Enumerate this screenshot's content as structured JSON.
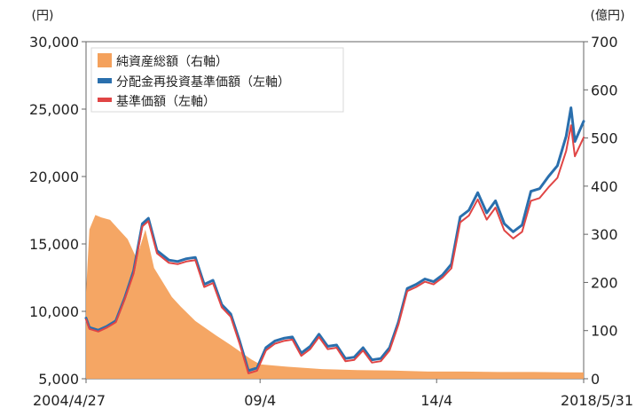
{
  "chart_data": {
    "type": "line",
    "left_axis": {
      "unit": "(円)",
      "ylim": [
        5000,
        30000
      ],
      "ticks": [
        5000,
        10000,
        15000,
        20000,
        25000,
        30000
      ],
      "tick_labels": [
        "5,000",
        "10,000",
        "15,000",
        "20,000",
        "25,000",
        "30,000"
      ]
    },
    "right_axis": {
      "unit": "(億円)",
      "ylim": [
        0,
        700
      ],
      "ticks": [
        0,
        100,
        200,
        300,
        400,
        500,
        600,
        700
      ],
      "tick_labels": [
        "0",
        "100",
        "200",
        "300",
        "400",
        "500",
        "600",
        "700"
      ]
    },
    "x_axis": {
      "range": [
        "2004-04-27",
        "2018-05-31"
      ],
      "ticks": [
        "2004-04-27",
        "2009-04-01",
        "2014-04-01",
        "2018-05-31"
      ],
      "tick_labels": [
        "2004/4/27",
        "09/4",
        "14/4",
        "2018/5/31"
      ]
    },
    "legend": {
      "placement": "top-left",
      "entries": [
        {
          "label": "純資産総額（右軸）",
          "type": "area",
          "color": "#f4a15c"
        },
        {
          "label": "分配金再投資基準価額（左軸）",
          "type": "line",
          "color": "#2a6fad"
        },
        {
          "label": "基準価額（左軸）",
          "type": "line",
          "color": "#e04545"
        }
      ]
    },
    "series": [
      {
        "name": "純資産総額（右軸）",
        "type": "area",
        "axis": "right",
        "color": "#f4a15c",
        "points": [
          [
            "2004-04-27",
            180
          ],
          [
            "2004-06-01",
            310
          ],
          [
            "2004-08-01",
            340
          ],
          [
            "2004-10-01",
            335
          ],
          [
            "2005-01-01",
            330
          ],
          [
            "2005-04-01",
            310
          ],
          [
            "2005-07-01",
            290
          ],
          [
            "2005-10-01",
            250
          ],
          [
            "2006-01-01",
            310
          ],
          [
            "2006-04-01",
            230
          ],
          [
            "2006-07-01",
            200
          ],
          [
            "2006-10-01",
            170
          ],
          [
            "2007-01-01",
            150
          ],
          [
            "2007-06-01",
            120
          ],
          [
            "2008-01-01",
            90
          ],
          [
            "2008-06-01",
            70
          ],
          [
            "2009-01-01",
            40
          ],
          [
            "2009-04-01",
            30
          ],
          [
            "2010-01-01",
            25
          ],
          [
            "2011-01-01",
            20
          ],
          [
            "2012-01-01",
            18
          ],
          [
            "2013-01-01",
            17
          ],
          [
            "2014-01-01",
            15
          ],
          [
            "2015-01-01",
            15
          ],
          [
            "2016-01-01",
            14
          ],
          [
            "2017-01-01",
            14
          ],
          [
            "2018-05-31",
            13
          ]
        ]
      },
      {
        "name": "分配金再投資基準価額（左軸）",
        "type": "line",
        "axis": "left",
        "color": "#2a6fad",
        "points": [
          [
            "2004-04-27",
            9500
          ],
          [
            "2004-06-01",
            8800
          ],
          [
            "2004-09-01",
            8600
          ],
          [
            "2004-12-01",
            8900
          ],
          [
            "2005-03-01",
            9300
          ],
          [
            "2005-06-01",
            11000
          ],
          [
            "2005-09-01",
            13000
          ],
          [
            "2005-12-01",
            16500
          ],
          [
            "2006-02-01",
            16900
          ],
          [
            "2006-05-01",
            14500
          ],
          [
            "2006-09-01",
            13800
          ],
          [
            "2006-12-01",
            13700
          ],
          [
            "2007-03-01",
            13900
          ],
          [
            "2007-06-01",
            14000
          ],
          [
            "2007-09-01",
            12000
          ],
          [
            "2007-12-01",
            12300
          ],
          [
            "2008-03-01",
            10500
          ],
          [
            "2008-06-01",
            9800
          ],
          [
            "2008-09-01",
            7800
          ],
          [
            "2008-12-01",
            5600
          ],
          [
            "2009-03-01",
            5800
          ],
          [
            "2009-06-01",
            7300
          ],
          [
            "2009-09-01",
            7800
          ],
          [
            "2009-12-01",
            8000
          ],
          [
            "2010-03-01",
            8100
          ],
          [
            "2010-06-01",
            6900
          ],
          [
            "2010-09-01",
            7400
          ],
          [
            "2010-12-01",
            8300
          ],
          [
            "2011-03-01",
            7400
          ],
          [
            "2011-06-01",
            7500
          ],
          [
            "2011-09-01",
            6500
          ],
          [
            "2011-12-01",
            6600
          ],
          [
            "2012-03-01",
            7300
          ],
          [
            "2012-06-01",
            6400
          ],
          [
            "2012-09-01",
            6500
          ],
          [
            "2012-12-01",
            7300
          ],
          [
            "2013-03-01",
            9200
          ],
          [
            "2013-06-01",
            11700
          ],
          [
            "2013-09-01",
            12000
          ],
          [
            "2013-12-01",
            12400
          ],
          [
            "2014-03-01",
            12200
          ],
          [
            "2014-06-01",
            12700
          ],
          [
            "2014-09-01",
            13500
          ],
          [
            "2014-12-01",
            17000
          ],
          [
            "2015-03-01",
            17500
          ],
          [
            "2015-06-01",
            18800
          ],
          [
            "2015-09-01",
            17300
          ],
          [
            "2015-12-01",
            18200
          ],
          [
            "2016-03-01",
            16500
          ],
          [
            "2016-06-01",
            15900
          ],
          [
            "2016-09-01",
            16400
          ],
          [
            "2016-12-01",
            18900
          ],
          [
            "2017-03-01",
            19100
          ],
          [
            "2017-06-01",
            20000
          ],
          [
            "2017-09-01",
            20800
          ],
          [
            "2017-12-01",
            23000
          ],
          [
            "2018-01-20",
            25100
          ],
          [
            "2018-03-01",
            22600
          ],
          [
            "2018-05-31",
            24100
          ]
        ]
      },
      {
        "name": "基準価額（左軸）",
        "type": "line",
        "axis": "left",
        "color": "#e04545",
        "points": [
          [
            "2004-04-27",
            9400
          ],
          [
            "2004-06-01",
            8700
          ],
          [
            "2004-09-01",
            8500
          ],
          [
            "2004-12-01",
            8800
          ],
          [
            "2005-03-01",
            9200
          ],
          [
            "2005-06-01",
            10900
          ],
          [
            "2005-09-01",
            12800
          ],
          [
            "2005-12-01",
            16300
          ],
          [
            "2006-02-01",
            16700
          ],
          [
            "2006-05-01",
            14300
          ],
          [
            "2006-09-01",
            13600
          ],
          [
            "2006-12-01",
            13500
          ],
          [
            "2007-03-01",
            13700
          ],
          [
            "2007-06-01",
            13800
          ],
          [
            "2007-09-01",
            11800
          ],
          [
            "2007-12-01",
            12100
          ],
          [
            "2008-03-01",
            10300
          ],
          [
            "2008-06-01",
            9600
          ],
          [
            "2008-09-01",
            7600
          ],
          [
            "2008-12-01",
            5400
          ],
          [
            "2009-03-01",
            5600
          ],
          [
            "2009-06-01",
            7100
          ],
          [
            "2009-09-01",
            7600
          ],
          [
            "2009-12-01",
            7800
          ],
          [
            "2010-03-01",
            7900
          ],
          [
            "2010-06-01",
            6700
          ],
          [
            "2010-09-01",
            7200
          ],
          [
            "2010-12-01",
            8100
          ],
          [
            "2011-03-01",
            7200
          ],
          [
            "2011-06-01",
            7300
          ],
          [
            "2011-09-01",
            6300
          ],
          [
            "2011-12-01",
            6400
          ],
          [
            "2012-03-01",
            7100
          ],
          [
            "2012-06-01",
            6200
          ],
          [
            "2012-09-01",
            6300
          ],
          [
            "2012-12-01",
            7100
          ],
          [
            "2013-03-01",
            9000
          ],
          [
            "2013-06-01",
            11500
          ],
          [
            "2013-09-01",
            11800
          ],
          [
            "2013-12-01",
            12200
          ],
          [
            "2014-03-01",
            12000
          ],
          [
            "2014-06-01",
            12500
          ],
          [
            "2014-09-01",
            13200
          ],
          [
            "2014-12-01",
            16600
          ],
          [
            "2015-03-01",
            17100
          ],
          [
            "2015-06-01",
            18300
          ],
          [
            "2015-09-01",
            16800
          ],
          [
            "2015-12-01",
            17700
          ],
          [
            "2016-03-01",
            16000
          ],
          [
            "2016-06-01",
            15400
          ],
          [
            "2016-09-01",
            15900
          ],
          [
            "2016-12-01",
            18200
          ],
          [
            "2017-03-01",
            18400
          ],
          [
            "2017-06-01",
            19200
          ],
          [
            "2017-09-01",
            19900
          ],
          [
            "2017-12-01",
            21900
          ],
          [
            "2018-01-20",
            23800
          ],
          [
            "2018-03-01",
            21500
          ],
          [
            "2018-05-31",
            22900
          ]
        ]
      }
    ]
  }
}
